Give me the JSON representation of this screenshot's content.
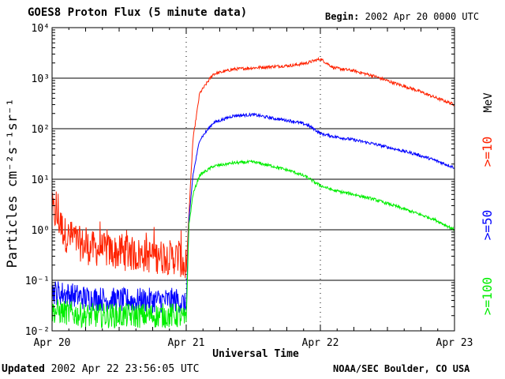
{
  "header": {
    "title": "GOES8 Proton Flux (5 minute data)",
    "begin_label": "Begin:",
    "begin_value": "2002 Apr 20 0000 UTC"
  },
  "footer": {
    "updated_label": "Updated",
    "updated_value": "2002 Apr 22 23:56:05 UTC",
    "credit": "NOAA/SEC Boulder, CO USA"
  },
  "colors": {
    "ge10": "#ff2200",
    "ge50": "#0000ff",
    "ge100": "#00ee00",
    "grid": "#000000"
  },
  "chart_data": {
    "type": "line",
    "title": "GOES8 Proton Flux (5 minute data)",
    "xlabel": "Universal Time",
    "ylabel": "Particles cm⁻²s⁻¹sr⁻¹",
    "yscale": "log",
    "ylim": [
      0.01,
      10000
    ],
    "xlim_days": [
      0,
      3
    ],
    "x_ticks": [
      "Apr 20",
      "Apr 21",
      "Apr 22",
      "Apr 23"
    ],
    "y_ticks": [
      "10⁻²",
      "10⁻¹",
      "10⁰",
      "10¹",
      "10²",
      "10³",
      "10⁴"
    ],
    "y_tick_values": [
      0.01,
      0.1,
      1,
      10,
      100,
      1000,
      10000
    ],
    "gridlines_at": [
      0.1,
      1,
      10,
      100,
      1000
    ],
    "units_label": "MeV",
    "series": [
      {
        "name": ">=10",
        "color": "#ff2200",
        "x": [
          0,
          0.05,
          0.1,
          0.25,
          0.5,
          0.75,
          0.95,
          1.0,
          1.02,
          1.05,
          1.1,
          1.2,
          1.35,
          1.5,
          1.65,
          1.8,
          1.9,
          1.95,
          2.0,
          2.1,
          2.25,
          2.4,
          2.55,
          2.7,
          2.85,
          3.0
        ],
        "values": [
          2.5,
          1.5,
          0.8,
          0.45,
          0.35,
          0.3,
          0.28,
          0.15,
          2.0,
          60,
          500,
          1200,
          1500,
          1600,
          1700,
          1800,
          2000,
          2200,
          2400,
          1600,
          1400,
          1100,
          800,
          600,
          420,
          300
        ]
      },
      {
        "name": ">=50",
        "color": "#0000ff",
        "x": [
          0,
          0.25,
          0.5,
          0.75,
          0.95,
          1.0,
          1.02,
          1.05,
          1.1,
          1.2,
          1.35,
          1.5,
          1.65,
          1.8,
          1.9,
          1.95,
          2.0,
          2.1,
          2.25,
          2.4,
          2.55,
          2.7,
          2.85,
          3.0
        ],
        "values": [
          0.06,
          0.045,
          0.04,
          0.04,
          0.04,
          0.03,
          1.5,
          12,
          60,
          130,
          180,
          190,
          160,
          140,
          120,
          100,
          80,
          70,
          60,
          50,
          40,
          32,
          24,
          17
        ]
      },
      {
        "name": ">=100",
        "color": "#00ee00",
        "x": [
          0,
          0.25,
          0.5,
          0.75,
          0.95,
          1.0,
          1.02,
          1.05,
          1.1,
          1.2,
          1.35,
          1.5,
          1.65,
          1.8,
          1.9,
          1.95,
          2.0,
          2.1,
          2.25,
          2.4,
          2.55,
          2.7,
          2.85,
          3.0
        ],
        "values": [
          0.025,
          0.02,
          0.02,
          0.02,
          0.02,
          0.015,
          1.2,
          5,
          12,
          18,
          21,
          22,
          18,
          14,
          11,
          9,
          7.5,
          6,
          5,
          4,
          3,
          2.2,
          1.6,
          1.0
        ]
      }
    ]
  }
}
